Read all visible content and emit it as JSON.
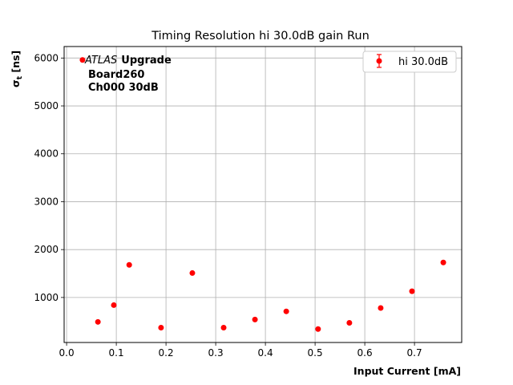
{
  "chart_data": {
    "type": "scatter",
    "title": "Timing Resolution hi 30.0dB gain Run",
    "xlabel": "Input Current [mA]",
    "ylabel_base": "σ",
    "ylabel_sub": "t",
    "ylabel_unit": "[ns]",
    "xlim": [
      -0.005,
      0.795
    ],
    "ylim": [
      60,
      6240
    ],
    "x_ticks": [
      0.0,
      0.1,
      0.2,
      0.3,
      0.4,
      0.5,
      0.6,
      0.7
    ],
    "x_tick_labels": [
      "0.0",
      "0.1",
      "0.2",
      "0.3",
      "0.4",
      "0.5",
      "0.6",
      "0.7"
    ],
    "y_ticks": [
      1000,
      2000,
      3000,
      4000,
      5000,
      6000
    ],
    "y_tick_labels": [
      "1000",
      "2000",
      "3000",
      "4000",
      "5000",
      "6000"
    ],
    "grid": true,
    "legend_position": "top-right",
    "series": [
      {
        "name": "hi 30.0dB",
        "color": "#ff0000",
        "marker": "circle-with-errorbar",
        "x": [
          0.032,
          0.063,
          0.095,
          0.126,
          0.19,
          0.253,
          0.316,
          0.379,
          0.442,
          0.506,
          0.569,
          0.632,
          0.695,
          0.758
        ],
        "y": [
          5960,
          490,
          840,
          1680,
          370,
          1510,
          370,
          540,
          710,
          340,
          470,
          780,
          1130,
          1730
        ]
      }
    ],
    "annotation": {
      "italic": "ATLAS",
      "bold": "Upgrade",
      "line2": "Board260",
      "line3": "Ch000 30dB"
    }
  }
}
